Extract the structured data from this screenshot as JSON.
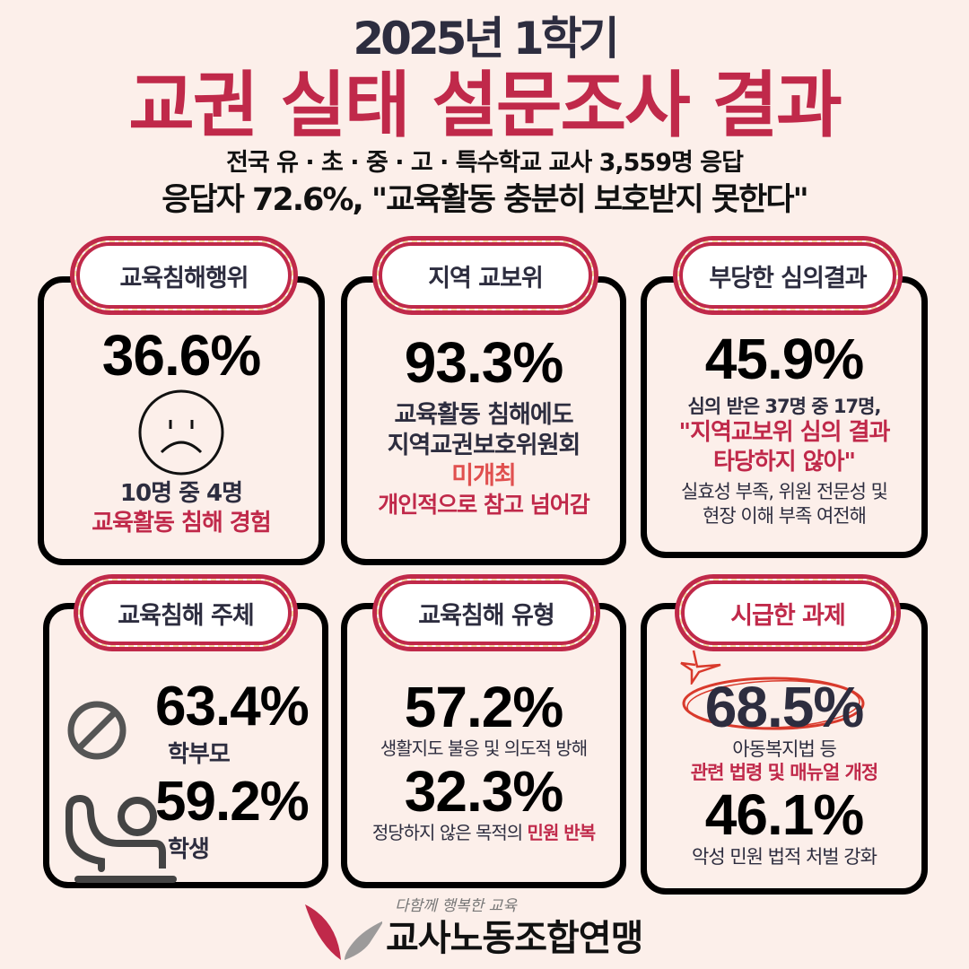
{
  "header": {
    "year_term": "2025년 1학기",
    "title": "교권 실태 설문조사 결과",
    "subtitle": "전국 유 · 초 · 중 · 고 · 특수학교 교사 3,559명 응답",
    "headline": "응답자 72.6%, \"교육활동 충분히 보호받지 못한다\""
  },
  "cards": [
    {
      "label": "교육침해행위",
      "value": "36.6%",
      "line1": "10명 중 4명",
      "line2": "교육활동 침해 경험"
    },
    {
      "label": "지역 교보위",
      "value": "93.3%",
      "line1": "교육활동 침해에도",
      "line2": "지역교권보호위원회",
      "line3": "미개최",
      "line4": "개인적으로 참고 넘어감"
    },
    {
      "label": "부당한 심의결과",
      "value": "45.9%",
      "line1": "심의 받은 37명 중 17명,",
      "line2": "\"지역교보위 심의 결과",
      "line3": "타당하지 않아\"",
      "line4": "실효성 부족, 위원 전문성 및",
      "line5": "현장 이해 부족 여전해"
    },
    {
      "label": "교육침해 주체",
      "value1": "63.4%",
      "sub1": "학부모",
      "value2": "59.2%",
      "sub2": "학생"
    },
    {
      "label": "교육침해 유형",
      "value1": "57.2%",
      "sub1": "생활지도 불응 및 의도적 방해",
      "value2": "32.3%",
      "sub2a": "정당하지 않은 목적의 ",
      "sub2b": "민원 반복"
    },
    {
      "label": "시급한 과제",
      "value1": "68.5%",
      "sub1a": "아동복지법 등",
      "sub1b": "관련 법령 및 매뉴얼 개정",
      "value2": "46.1%",
      "sub2": "악성 민원 법적 처벌 강화"
    }
  ],
  "footer": {
    "slogan": "다함께 행복한 교육",
    "org": "교사노동조합연맹"
  },
  "colors": {
    "background": "#fcefea",
    "accent": "#c0294a",
    "dark": "#2d2d3f"
  }
}
